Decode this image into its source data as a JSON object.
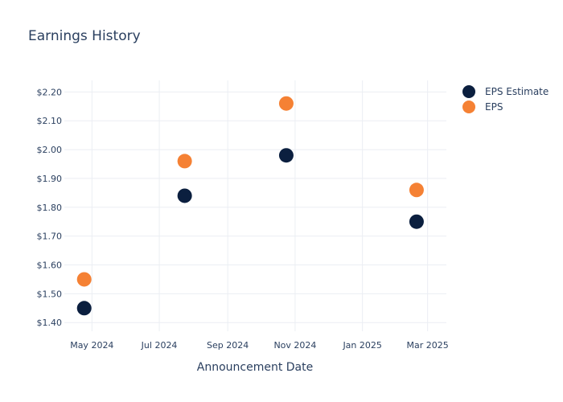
{
  "chart_data": {
    "type": "scatter",
    "title": "Earnings History",
    "xlabel": "Announcement Date",
    "ylabel": "",
    "x": [
      "2024-04-24",
      "2024-07-24",
      "2024-10-24",
      "2025-02-19"
    ],
    "x_ticks": [
      {
        "date": "2024-05-01",
        "label": "May 2024"
      },
      {
        "date": "2024-07-01",
        "label": "Jul 2024"
      },
      {
        "date": "2024-09-01",
        "label": "Sep 2024"
      },
      {
        "date": "2024-11-01",
        "label": "Nov 2024"
      },
      {
        "date": "2025-01-01",
        "label": "Jan 2025"
      },
      {
        "date": "2025-03-01",
        "label": "Mar 2025"
      }
    ],
    "xlim": [
      "2024-04-06",
      "2025-03-18"
    ],
    "y_ticks": [
      1.4,
      1.5,
      1.6,
      1.7,
      1.8,
      1.9,
      2.0,
      2.1,
      2.2
    ],
    "y_tick_labels": [
      "$1.40",
      "$1.50",
      "$1.60",
      "$1.70",
      "$1.80",
      "$1.90",
      "$2.00",
      "$2.10",
      "$2.20"
    ],
    "ylim": [
      1.37,
      2.24
    ],
    "grid": true,
    "legend_position": "top-right",
    "series": [
      {
        "name": "EPS Estimate",
        "color": "#0b1f3f",
        "values": [
          1.45,
          1.84,
          1.98,
          1.75
        ]
      },
      {
        "name": "EPS",
        "color": "#f58134",
        "values": [
          1.55,
          1.96,
          2.16,
          1.86
        ]
      }
    ]
  }
}
